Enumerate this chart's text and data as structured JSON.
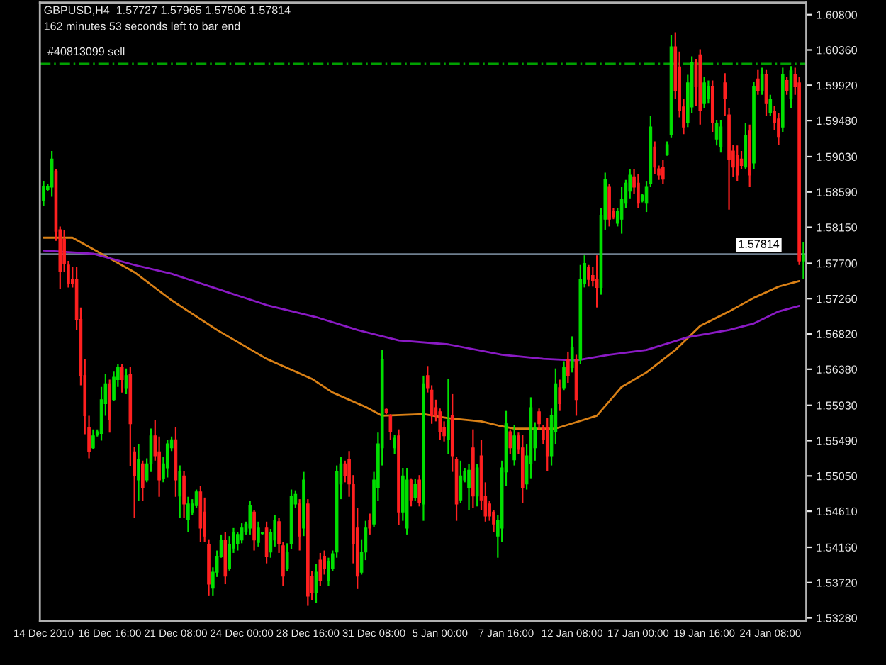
{
  "chart_data": {
    "type": "candlestick",
    "title": "GBPUSD,H4  1.57727 1.57965 1.57506 1.57814",
    "annotations": [
      "162 minutes 53 seconds left to bar end"
    ],
    "categories": [
      "14 Dec 2010",
      null,
      null,
      null,
      null,
      null,
      null,
      null,
      null,
      null,
      null,
      null,
      null,
      null,
      null,
      null,
      "16 Dec 16:00",
      null,
      null,
      null,
      null,
      null,
      null,
      null,
      null,
      null,
      null,
      null,
      null,
      null,
      null,
      null,
      "21 Dec 08:00",
      null,
      null,
      null,
      null,
      null,
      null,
      null,
      null,
      null,
      null,
      null,
      null,
      null,
      null,
      null,
      "24 Dec 00:00",
      null,
      null,
      null,
      null,
      null,
      null,
      null,
      null,
      null,
      null,
      null,
      null,
      null,
      null,
      null,
      "28 Dec 16:00",
      null,
      null,
      null,
      null,
      null,
      null,
      null,
      null,
      null,
      null,
      null,
      null,
      null,
      null,
      null,
      "31 Dec 08:00",
      null,
      null,
      null,
      null,
      null,
      null,
      null,
      null,
      null,
      null,
      null,
      null,
      null,
      null,
      null,
      "5 Jan 00:00",
      null,
      null,
      null,
      null,
      null,
      null,
      null,
      null,
      null,
      null,
      null,
      null,
      null,
      null,
      null,
      "7 Jan 16:00",
      null,
      null,
      null,
      null,
      null,
      null,
      null,
      null,
      null,
      null,
      null,
      null,
      null,
      null,
      null,
      "12 Jan 08:00",
      null,
      null,
      null,
      null,
      null,
      null,
      null,
      null,
      null,
      null,
      null,
      null,
      null,
      null,
      null,
      "17 Jan 00:00",
      null,
      null,
      null,
      null,
      null,
      null,
      null,
      null,
      null,
      null,
      null,
      null,
      null,
      null,
      null,
      "19 Jan 16:00",
      null,
      null,
      null,
      null,
      null,
      null,
      null,
      null,
      null,
      null,
      null,
      null,
      null,
      null,
      null,
      "24 Jan 08:00",
      null,
      null,
      null,
      null,
      null,
      null,
      null,
      null
    ],
    "series": [
      {
        "ohlc": [
          [
            1.5848,
            1.5872,
            1.5842,
            1.5866
          ],
          [
            1.5862,
            1.5869,
            1.586,
            1.5866
          ],
          [
            1.5865,
            1.591,
            1.5853,
            1.59
          ],
          [
            1.5885,
            1.5888,
            1.5798,
            1.581
          ],
          [
            1.5812,
            1.5816,
            1.5738,
            1.576
          ],
          [
            1.58,
            1.5812,
            1.5759,
            1.577
          ],
          [
            1.5768,
            1.5773,
            1.574,
            1.5745
          ],
          [
            1.575,
            1.5766,
            1.574,
            1.5745
          ],
          [
            1.575,
            1.5766,
            1.5687,
            1.57
          ],
          [
            1.57,
            1.5715,
            1.5618,
            1.563
          ],
          [
            1.563,
            1.5651,
            1.5557,
            1.558
          ],
          [
            1.5565,
            1.558,
            1.5527,
            1.5535
          ],
          [
            1.554,
            1.5563,
            1.5538,
            1.5555
          ],
          [
            1.5556,
            1.5563,
            1.5554,
            1.556
          ],
          [
            1.5558,
            1.5616,
            1.5549,
            1.56
          ],
          [
            1.5595,
            1.5632,
            1.558,
            1.562
          ],
          [
            1.562,
            1.5625,
            1.5559,
            1.5575
          ],
          [
            1.56,
            1.5635,
            1.5598,
            1.5628
          ],
          [
            1.5625,
            1.5644,
            1.5616,
            1.564
          ],
          [
            1.564,
            1.5644,
            1.5609,
            1.5625
          ],
          [
            1.5615,
            1.5639,
            1.5607,
            1.563
          ],
          [
            1.5632,
            1.5641,
            1.5517,
            1.557
          ],
          [
            1.5535,
            1.5541,
            1.5453,
            1.5505
          ],
          [
            1.55,
            1.5545,
            1.5474,
            1.5525
          ],
          [
            1.552,
            1.5524,
            1.5474,
            1.549
          ],
          [
            1.55,
            1.5527,
            1.5497,
            1.552
          ],
          [
            1.552,
            1.5564,
            1.551,
            1.5555
          ],
          [
            1.5555,
            1.5575,
            1.5524,
            1.553
          ],
          [
            1.5535,
            1.5554,
            1.5479,
            1.55
          ],
          [
            1.5502,
            1.5529,
            1.5497,
            1.552
          ],
          [
            1.5515,
            1.555,
            1.5503,
            1.5545
          ],
          [
            1.554,
            1.5554,
            1.5536,
            1.555
          ],
          [
            1.555,
            1.5566,
            1.5479,
            1.55
          ],
          [
            1.548,
            1.5518,
            1.5453,
            1.551
          ],
          [
            1.5505,
            1.5511,
            1.5453,
            1.547
          ],
          [
            1.545,
            1.5479,
            1.5435,
            1.547
          ],
          [
            1.546,
            1.5476,
            1.5456,
            1.547
          ],
          [
            1.5468,
            1.5488,
            1.5465,
            1.5485
          ],
          [
            1.5485,
            1.5492,
            1.5423,
            1.544
          ],
          [
            1.546,
            1.5478,
            1.5423,
            1.543
          ],
          [
            1.542,
            1.5426,
            1.5356,
            1.537
          ],
          [
            1.5365,
            1.5391,
            1.5356,
            1.5385
          ],
          [
            1.5385,
            1.5412,
            1.5379,
            1.5405
          ],
          [
            1.5405,
            1.5432,
            1.5403,
            1.5425
          ],
          [
            1.5425,
            1.5435,
            1.537,
            1.538
          ],
          [
            1.539,
            1.543,
            1.5387,
            1.542
          ],
          [
            1.5415,
            1.544,
            1.5409,
            1.5435
          ],
          [
            1.542,
            1.5435,
            1.5412,
            1.5432
          ],
          [
            1.5425,
            1.5446,
            1.5421,
            1.544
          ],
          [
            1.5435,
            1.5448,
            1.5432,
            1.5445
          ],
          [
            1.544,
            1.5474,
            1.5432,
            1.5468
          ],
          [
            1.546,
            1.5462,
            1.5412,
            1.5425
          ],
          [
            1.5422,
            1.5448,
            1.5417,
            1.544
          ],
          [
            1.5433,
            1.5435,
            1.5432,
            1.5435
          ],
          [
            1.544,
            1.5448,
            1.5396,
            1.5405
          ],
          [
            1.541,
            1.5439,
            1.5403,
            1.5435
          ],
          [
            1.5425,
            1.5456,
            1.5417,
            1.545
          ],
          [
            1.5448,
            1.5453,
            1.5409,
            1.542
          ],
          [
            1.5418,
            1.5423,
            1.5368,
            1.538
          ],
          [
            1.539,
            1.5421,
            1.5386,
            1.541
          ],
          [
            1.542,
            1.5488,
            1.5414,
            1.548
          ],
          [
            1.547,
            1.5487,
            1.5465,
            1.5482
          ],
          [
            1.547,
            1.5476,
            1.5412,
            1.543
          ],
          [
            1.544,
            1.551,
            1.543,
            1.55
          ],
          [
            1.547,
            1.5476,
            1.5343,
            1.5355
          ],
          [
            1.538,
            1.5386,
            1.535,
            1.536
          ],
          [
            1.536,
            1.5395,
            1.5347,
            1.5385
          ],
          [
            1.54,
            1.5409,
            1.5368,
            1.5375
          ],
          [
            1.5405,
            1.5412,
            1.5382,
            1.539
          ],
          [
            1.5375,
            1.5403,
            1.5368,
            1.5398
          ],
          [
            1.539,
            1.5412,
            1.5386,
            1.5408
          ],
          [
            1.541,
            1.5518,
            1.5403,
            1.551
          ],
          [
            1.5495,
            1.5529,
            1.5476,
            1.552
          ],
          [
            1.552,
            1.5524,
            1.5497,
            1.5505
          ],
          [
            1.5525,
            1.5536,
            1.5479,
            1.5495
          ],
          [
            1.5495,
            1.5506,
            1.5396,
            1.542
          ],
          [
            1.544,
            1.5465,
            1.5364,
            1.538
          ],
          [
            1.5385,
            1.5426,
            1.5382,
            1.541
          ],
          [
            1.541,
            1.5449,
            1.54,
            1.544
          ],
          [
            1.545,
            1.5458,
            1.5432,
            1.544
          ],
          [
            1.5445,
            1.551,
            1.5441,
            1.55
          ],
          [
            1.549,
            1.5559,
            1.5474,
            1.5545
          ],
          [
            1.554,
            1.5662,
            1.5518,
            1.565
          ],
          [
            1.5588,
            1.5589,
            1.5582,
            1.5584
          ],
          [
            1.558,
            1.5582,
            1.555,
            1.556
          ],
          [
            1.554,
            1.5556,
            1.5532,
            1.5552
          ],
          [
            1.5555,
            1.5563,
            1.5444,
            1.546
          ],
          [
            1.546,
            1.5515,
            1.5449,
            1.5505
          ],
          [
            1.544,
            1.5515,
            1.5432,
            1.55
          ],
          [
            1.55,
            1.5502,
            1.5467,
            1.5475
          ],
          [
            1.5478,
            1.5501,
            1.5474,
            1.5495
          ],
          [
            1.55,
            1.5506,
            1.5467,
            1.5472
          ],
          [
            1.547,
            1.563,
            1.5449,
            1.562
          ],
          [
            1.563,
            1.5642,
            1.5609,
            1.5615
          ],
          [
            1.5612,
            1.5618,
            1.557,
            1.558
          ],
          [
            1.559,
            1.56,
            1.5573,
            1.558
          ],
          [
            1.5585,
            1.5589,
            1.555,
            1.556
          ],
          [
            1.5565,
            1.5573,
            1.5548,
            1.5555
          ],
          [
            1.555,
            1.5626,
            1.5532,
            1.5575
          ],
          [
            1.558,
            1.5607,
            1.551,
            1.553
          ],
          [
            1.5525,
            1.5529,
            1.5449,
            1.547
          ],
          [
            1.5475,
            1.5524,
            1.5471,
            1.5505
          ],
          [
            1.55,
            1.5515,
            1.5497,
            1.551
          ],
          [
            1.549,
            1.552,
            1.5462,
            1.5512
          ],
          [
            1.554,
            1.5563,
            1.5465,
            1.548
          ],
          [
            1.548,
            1.552,
            1.5467,
            1.5515
          ],
          [
            1.553,
            1.555,
            1.5462,
            1.5475
          ],
          [
            1.548,
            1.5497,
            1.5448,
            1.5455
          ],
          [
            1.547,
            1.5474,
            1.5449,
            1.5455
          ],
          [
            1.546,
            1.5462,
            1.5435,
            1.5445
          ],
          [
            1.543,
            1.5456,
            1.5403,
            1.545
          ],
          [
            1.544,
            1.5524,
            1.5423,
            1.5515
          ],
          [
            1.551,
            1.5586,
            1.5492,
            1.557
          ],
          [
            1.556,
            1.5563,
            1.5532,
            1.554
          ],
          [
            1.5525,
            1.5568,
            1.5518,
            1.5555
          ],
          [
            1.5555,
            1.5559,
            1.5532,
            1.5538
          ],
          [
            1.554,
            1.5556,
            1.5471,
            1.549
          ],
          [
            1.5495,
            1.5545,
            1.5488,
            1.553
          ],
          [
            1.552,
            1.5603,
            1.5502,
            1.559
          ],
          [
            1.554,
            1.5572,
            1.5524,
            1.5565
          ],
          [
            1.5585,
            1.5589,
            1.5563,
            1.557
          ],
          [
            1.5565,
            1.5568,
            1.5545,
            1.555
          ],
          [
            1.5565,
            1.5577,
            1.5511,
            1.553
          ],
          [
            1.553,
            1.5589,
            1.5518,
            1.558
          ],
          [
            1.556,
            1.5639,
            1.5545,
            1.562
          ],
          [
            1.5615,
            1.5625,
            1.5586,
            1.5595
          ],
          [
            1.5615,
            1.5648,
            1.5612,
            1.564
          ],
          [
            1.565,
            1.566,
            1.5621,
            1.563
          ],
          [
            1.564,
            1.5679,
            1.5634,
            1.5665
          ],
          [
            1.565,
            1.5656,
            1.558,
            1.56
          ],
          [
            1.565,
            1.5768,
            1.5644,
            1.575
          ],
          [
            1.5745,
            1.578,
            1.574,
            1.577
          ],
          [
            1.5765,
            1.5768,
            1.5741,
            1.575
          ],
          [
            1.5755,
            1.5766,
            1.5741,
            1.5748
          ],
          [
            1.575,
            1.578,
            1.5715,
            1.574
          ],
          [
            1.574,
            1.5839,
            1.5731,
            1.583
          ],
          [
            1.5825,
            1.5883,
            1.5812,
            1.5875
          ],
          [
            1.5865,
            1.5869,
            1.5816,
            1.5825
          ],
          [
            1.5835,
            1.5839,
            1.5825,
            1.5828
          ],
          [
            1.582,
            1.5839,
            1.5816,
            1.5835
          ],
          [
            1.5825,
            1.5865,
            1.5807,
            1.585
          ],
          [
            1.5845,
            1.5874,
            1.5839,
            1.587
          ],
          [
            1.586,
            1.5887,
            1.5851,
            1.588
          ],
          [
            1.5878,
            1.5887,
            1.5857,
            1.5865
          ],
          [
            1.587,
            1.5881,
            1.5839,
            1.5845
          ],
          [
            1.5848,
            1.5857,
            1.5846,
            1.5855
          ],
          [
            1.5845,
            1.5872,
            1.5834,
            1.5865
          ],
          [
            1.587,
            1.5954,
            1.5865,
            1.594
          ],
          [
            1.5915,
            1.5922,
            1.5881,
            1.589
          ],
          [
            1.5888,
            1.5892,
            1.5874,
            1.588
          ],
          [
            1.589,
            1.5899,
            1.5869,
            1.5875
          ],
          [
            1.5906,
            1.5922,
            1.5904,
            1.5918
          ],
          [
            1.593,
            1.6055,
            1.5927,
            1.604
          ],
          [
            1.604,
            1.6058,
            1.5975,
            1.5985
          ],
          [
            1.6015,
            1.6034,
            1.5952,
            1.596
          ],
          [
            1.5965,
            1.5975,
            1.5931,
            1.594
          ],
          [
            1.5945,
            1.6005,
            1.594,
            1.5995
          ],
          [
            1.5965,
            1.6028,
            1.5957,
            1.602
          ],
          [
            1.602,
            1.6025,
            1.5966,
            1.599
          ],
          [
            1.603,
            1.6037,
            1.5943,
            1.596
          ],
          [
            1.597,
            1.6002,
            1.5963,
            1.5995
          ],
          [
            1.5975,
            1.5998,
            1.597,
            1.599
          ],
          [
            1.599,
            1.5998,
            1.5934,
            1.5945
          ],
          [
            1.5925,
            1.5949,
            1.5917,
            1.5945
          ],
          [
            1.5915,
            1.5949,
            1.5908,
            1.594
          ],
          [
            1.5995,
            1.6007,
            1.5954,
            1.5975
          ],
          [
            1.5955,
            1.5963,
            1.5837,
            1.59
          ],
          [
            1.591,
            1.5918,
            1.5878,
            1.589
          ],
          [
            1.5905,
            1.5917,
            1.5872,
            1.588
          ],
          [
            1.59,
            1.591,
            1.5887,
            1.5892
          ],
          [
            1.589,
            1.5945,
            1.5887,
            1.593
          ],
          [
            1.5935,
            1.5943,
            1.5865,
            1.588
          ],
          [
            1.5895,
            1.5996,
            1.5887,
            1.599
          ],
          [
            1.6,
            1.6011,
            1.598,
            1.5985
          ],
          [
            1.5985,
            1.6014,
            1.598,
            1.6005
          ],
          [
            1.6005,
            1.6011,
            1.5954,
            1.597
          ],
          [
            1.5958,
            1.598,
            1.5954,
            1.5975
          ],
          [
            1.596,
            1.5966,
            1.5936,
            1.5945
          ],
          [
            1.595,
            1.5957,
            1.5918,
            1.5928
          ],
          [
            1.594,
            1.6014,
            1.5934,
            1.6005
          ],
          [
            1.5998,
            1.6002,
            1.598,
            1.5985
          ],
          [
            1.5975,
            1.6016,
            1.5963,
            1.601
          ],
          [
            1.6005,
            1.6014,
            1.598,
            1.599
          ],
          [
            1.5995,
            1.6002,
            1.5768,
            1.5773
          ],
          [
            1.5773,
            1.5797,
            1.5751,
            1.5781
          ]
        ]
      },
      {
        "type": "line",
        "color": "#d98016",
        "values": [
          1.5802,
          null,
          null,
          null,
          null,
          null,
          null,
          1.5802,
          null,
          null,
          null,
          null,
          null,
          null,
          1.5782,
          null,
          null,
          null,
          null,
          null,
          null,
          null,
          1.5759,
          null,
          null,
          null,
          null,
          null,
          null,
          null,
          null,
          1.5724,
          null,
          null,
          null,
          null,
          null,
          null,
          null,
          null,
          null,
          null,
          1.5687,
          null,
          null,
          null,
          null,
          null,
          null,
          null,
          null,
          null,
          null,
          null,
          1.5651,
          null,
          null,
          null,
          null,
          null,
          null,
          null,
          null,
          null,
          null,
          1.5626,
          null,
          null,
          null,
          null,
          1.5609,
          null,
          null,
          null,
          null,
          null,
          null,
          null,
          1.5591,
          null,
          null,
          null,
          1.558,
          null,
          null,
          null,
          null,
          null,
          null,
          null,
          null,
          null,
          1.5582,
          null,
          null,
          null,
          null,
          null,
          1.5577,
          null,
          null,
          null,
          null,
          null,
          null,
          null,
          1.5573,
          null,
          null,
          null,
          1.5568,
          null,
          null,
          null,
          1.5564,
          null,
          null,
          null,
          null,
          null,
          null,
          null,
          null,
          null,
          1.5564,
          null,
          null,
          null,
          null,
          1.5572,
          null,
          null,
          null,
          null,
          1.558,
          null,
          null,
          null,
          null,
          null,
          1.5616,
          null,
          null,
          null,
          null,
          null,
          1.5634,
          null,
          null,
          null,
          null,
          null,
          null,
          1.5662,
          null,
          null,
          null,
          null,
          null,
          1.5692,
          null,
          null,
          null,
          null,
          null,
          null,
          1.571,
          null,
          null,
          null,
          null,
          null,
          1.5727,
          null,
          null,
          null,
          null,
          null,
          1.5741,
          null,
          null,
          null,
          null,
          1.5748,
          null
        ]
      },
      {
        "type": "line",
        "color": "#8a1ac4",
        "values": [
          1.5786,
          null,
          null,
          null,
          null,
          null,
          null,
          null,
          null,
          null,
          null,
          null,
          1.5782,
          null,
          null,
          null,
          null,
          null,
          null,
          null,
          null,
          null,
          1.5768,
          null,
          null,
          null,
          null,
          null,
          null,
          null,
          null,
          1.5757,
          null,
          null,
          null,
          null,
          null,
          null,
          null,
          null,
          null,
          1.574,
          null,
          null,
          null,
          null,
          null,
          null,
          null,
          null,
          null,
          null,
          null,
          null,
          1.5718,
          null,
          null,
          null,
          null,
          null,
          null,
          null,
          null,
          null,
          null,
          null,
          1.5703,
          null,
          null,
          null,
          null,
          null,
          null,
          null,
          null,
          null,
          1.5687,
          null,
          null,
          null,
          null,
          null,
          null,
          null,
          null,
          null,
          1.5674,
          null,
          null,
          null,
          null,
          null,
          null,
          null,
          null,
          null,
          null,
          null,
          1.5669,
          null,
          null,
          null,
          null,
          null,
          null,
          null,
          null,
          null,
          null,
          null,
          null,
          1.5656,
          null,
          null,
          null,
          null,
          null,
          null,
          null,
          null,
          null,
          1.5651,
          null,
          null,
          null,
          null,
          null,
          null,
          null,
          1.5649,
          null,
          null,
          null,
          null,
          null,
          null,
          null,
          1.5656,
          null,
          null,
          null,
          null,
          null,
          null,
          null,
          null,
          1.5662,
          null,
          null,
          null,
          null,
          null,
          null,
          null,
          null,
          null,
          1.5678,
          null,
          null,
          null,
          null,
          null,
          null,
          null,
          null,
          null,
          1.5687,
          null,
          null,
          null,
          null,
          null,
          1.5695,
          null,
          null,
          null,
          null,
          null,
          1.571,
          null,
          null,
          null,
          null,
          1.5717,
          null
        ]
      }
    ],
    "ylim": [
      1.5324,
      1.6095
    ],
    "yticks": [
      {
        "value": 1.608,
        "label": "1.60800"
      },
      {
        "value": 1.6036,
        "label": "1.60360"
      },
      {
        "value": 1.5992,
        "label": "1.59920"
      },
      {
        "value": 1.5948,
        "label": "1.59480"
      },
      {
        "value": 1.5903,
        "label": "1.59030"
      },
      {
        "value": 1.5859,
        "label": "1.58590"
      },
      {
        "value": 1.5815,
        "label": "1.58150"
      },
      {
        "value": 1.577,
        "label": "1.57700"
      },
      {
        "value": 1.5726,
        "label": "1.57260"
      },
      {
        "value": 1.5682,
        "label": "1.56820"
      },
      {
        "value": 1.5638,
        "label": "1.56380"
      },
      {
        "value": 1.5593,
        "label": "1.55930"
      },
      {
        "value": 1.5549,
        "label": "1.55490"
      },
      {
        "value": 1.5505,
        "label": "1.55050"
      },
      {
        "value": 1.5461,
        "label": "1.54610"
      },
      {
        "value": 1.5416,
        "label": "1.54160"
      },
      {
        "value": 1.5372,
        "label": "1.53720"
      },
      {
        "value": 1.5328,
        "label": "1.53280"
      }
    ],
    "ref_lines": [
      {
        "axis": "y",
        "value": 1.6019,
        "label": "#40813099 sell",
        "color": "#00a000",
        "line_style": "dashed"
      },
      {
        "axis": "y",
        "value": 1.57814,
        "label": "1.57814",
        "color": "#6f7f8f",
        "line_style": "solid"
      }
    ]
  }
}
